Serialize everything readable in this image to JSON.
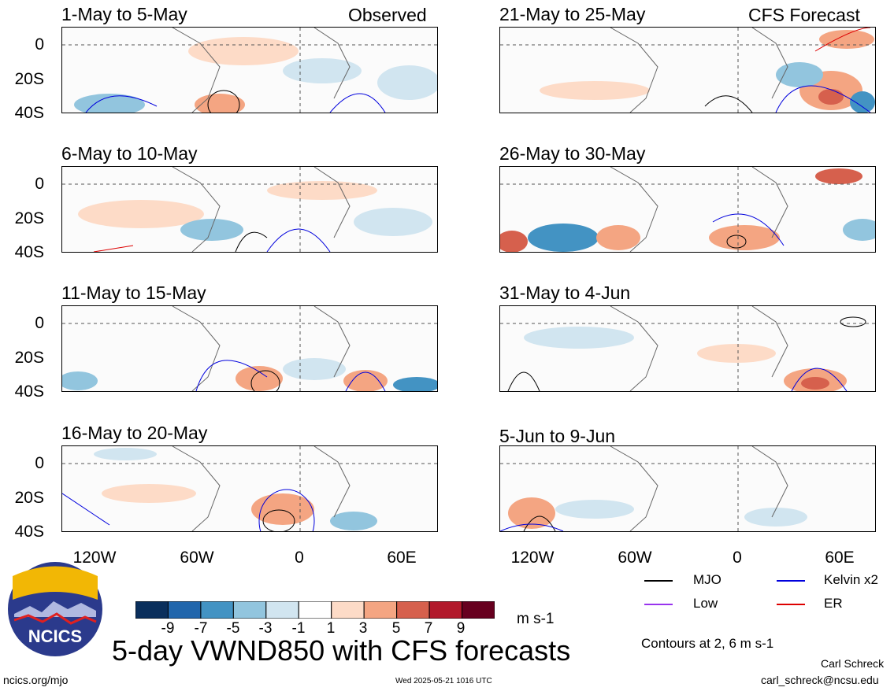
{
  "header": {
    "observed": "Observed",
    "forecast": "CFS Forecast"
  },
  "panels": [
    {
      "title": "1-May to 5-May"
    },
    {
      "title": "6-May to 10-May"
    },
    {
      "title": "11-May to 15-May"
    },
    {
      "title": "16-May to 20-May"
    },
    {
      "title": "21-May to 25-May"
    },
    {
      "title": "26-May to 30-May"
    },
    {
      "title": "31-May to 4-Jun"
    },
    {
      "title": "5-Jun to 9-Jun"
    }
  ],
  "yaxis": {
    "labels": [
      "0",
      "20S",
      "40S"
    ]
  },
  "xaxis": {
    "labels": [
      "120W",
      "60W",
      "0",
      "60E"
    ]
  },
  "colorbar": {
    "ticks": [
      "-9",
      "-7",
      "-5",
      "-3",
      "-1",
      "1",
      "3",
      "5",
      "7",
      "9"
    ],
    "unit": "m s-1",
    "colors": [
      "#0a2f5c",
      "#2166ac",
      "#4393c3",
      "#92c5de",
      "#d1e5f0",
      "#ffffff",
      "#fddbc7",
      "#f4a582",
      "#d6604d",
      "#b2182b",
      "#67001f"
    ]
  },
  "legend": {
    "items": [
      {
        "label": "MJO",
        "color": "#000000"
      },
      {
        "label": "Kelvin x2",
        "color": "#0000dd"
      },
      {
        "label": "Low",
        "color": "#9933ee"
      },
      {
        "label": "ER",
        "color": "#dd0000"
      }
    ],
    "contours_note": "Contours at 2, 6 m s-1"
  },
  "footer": {
    "main_title": "5-day VWND850 with CFS forecasts",
    "logo_text": "NCICS",
    "url": "ncics.org/mjo",
    "timestamp": "Wed 2025-05-21 1016 UTC",
    "author": "Carl Schreck",
    "email": "carl_schreck@ncsu.edu"
  },
  "chart_data": {
    "type": "heatmap",
    "variable": "VWND850",
    "unit": "m s-1",
    "levels": [
      -9,
      -7,
      -5,
      -3,
      -1,
      1,
      3,
      5,
      7,
      9
    ],
    "contour_levels": [
      2,
      6
    ],
    "lat_labels": [
      "0",
      "20S",
      "40S"
    ],
    "lon_labels": [
      "120W",
      "60W",
      "0",
      "60E"
    ],
    "panels": [
      "1-May to 5-May",
      "6-May to 10-May",
      "11-May to 15-May",
      "16-May to 20-May",
      "21-May to 25-May",
      "26-May to 30-May",
      "31-May to 4-Jun",
      "5-Jun to 9-Jun"
    ],
    "series": [
      {
        "name": "MJO",
        "color": "#000000"
      },
      {
        "name": "Kelvin x2",
        "color": "#0000dd"
      },
      {
        "name": "Low",
        "color": "#9933ee"
      },
      {
        "name": "ER",
        "color": "#dd0000"
      }
    ]
  }
}
